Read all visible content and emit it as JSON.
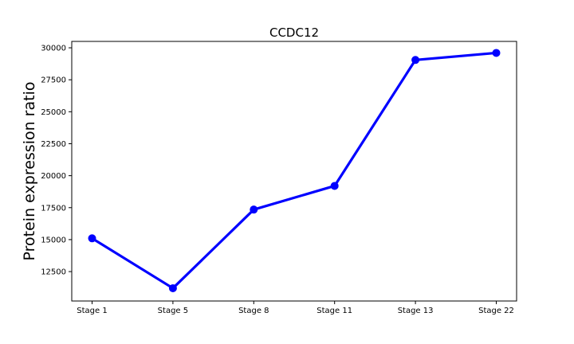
{
  "chart_data": {
    "type": "line",
    "title": "CCDC12",
    "xlabel": "",
    "ylabel": "Protein expression ratio",
    "categories": [
      "Stage 1",
      "Stage 5",
      "Stage 8",
      "Stage 11",
      "Stage 13",
      "Stage 22"
    ],
    "series": [
      {
        "values": [
          15100,
          11200,
          17350,
          19200,
          29050,
          29600
        ],
        "color": "#0000ff"
      }
    ],
    "ylim": [
      10200,
      30500
    ],
    "yticks": [
      12500,
      15000,
      17500,
      20000,
      22500,
      25000,
      27500,
      30000
    ],
    "ytick_labels": [
      "12500",
      "15000",
      "17500",
      "20000",
      "22500",
      "25000",
      "27500",
      "30000"
    ],
    "grid": false,
    "legend": "none"
  }
}
